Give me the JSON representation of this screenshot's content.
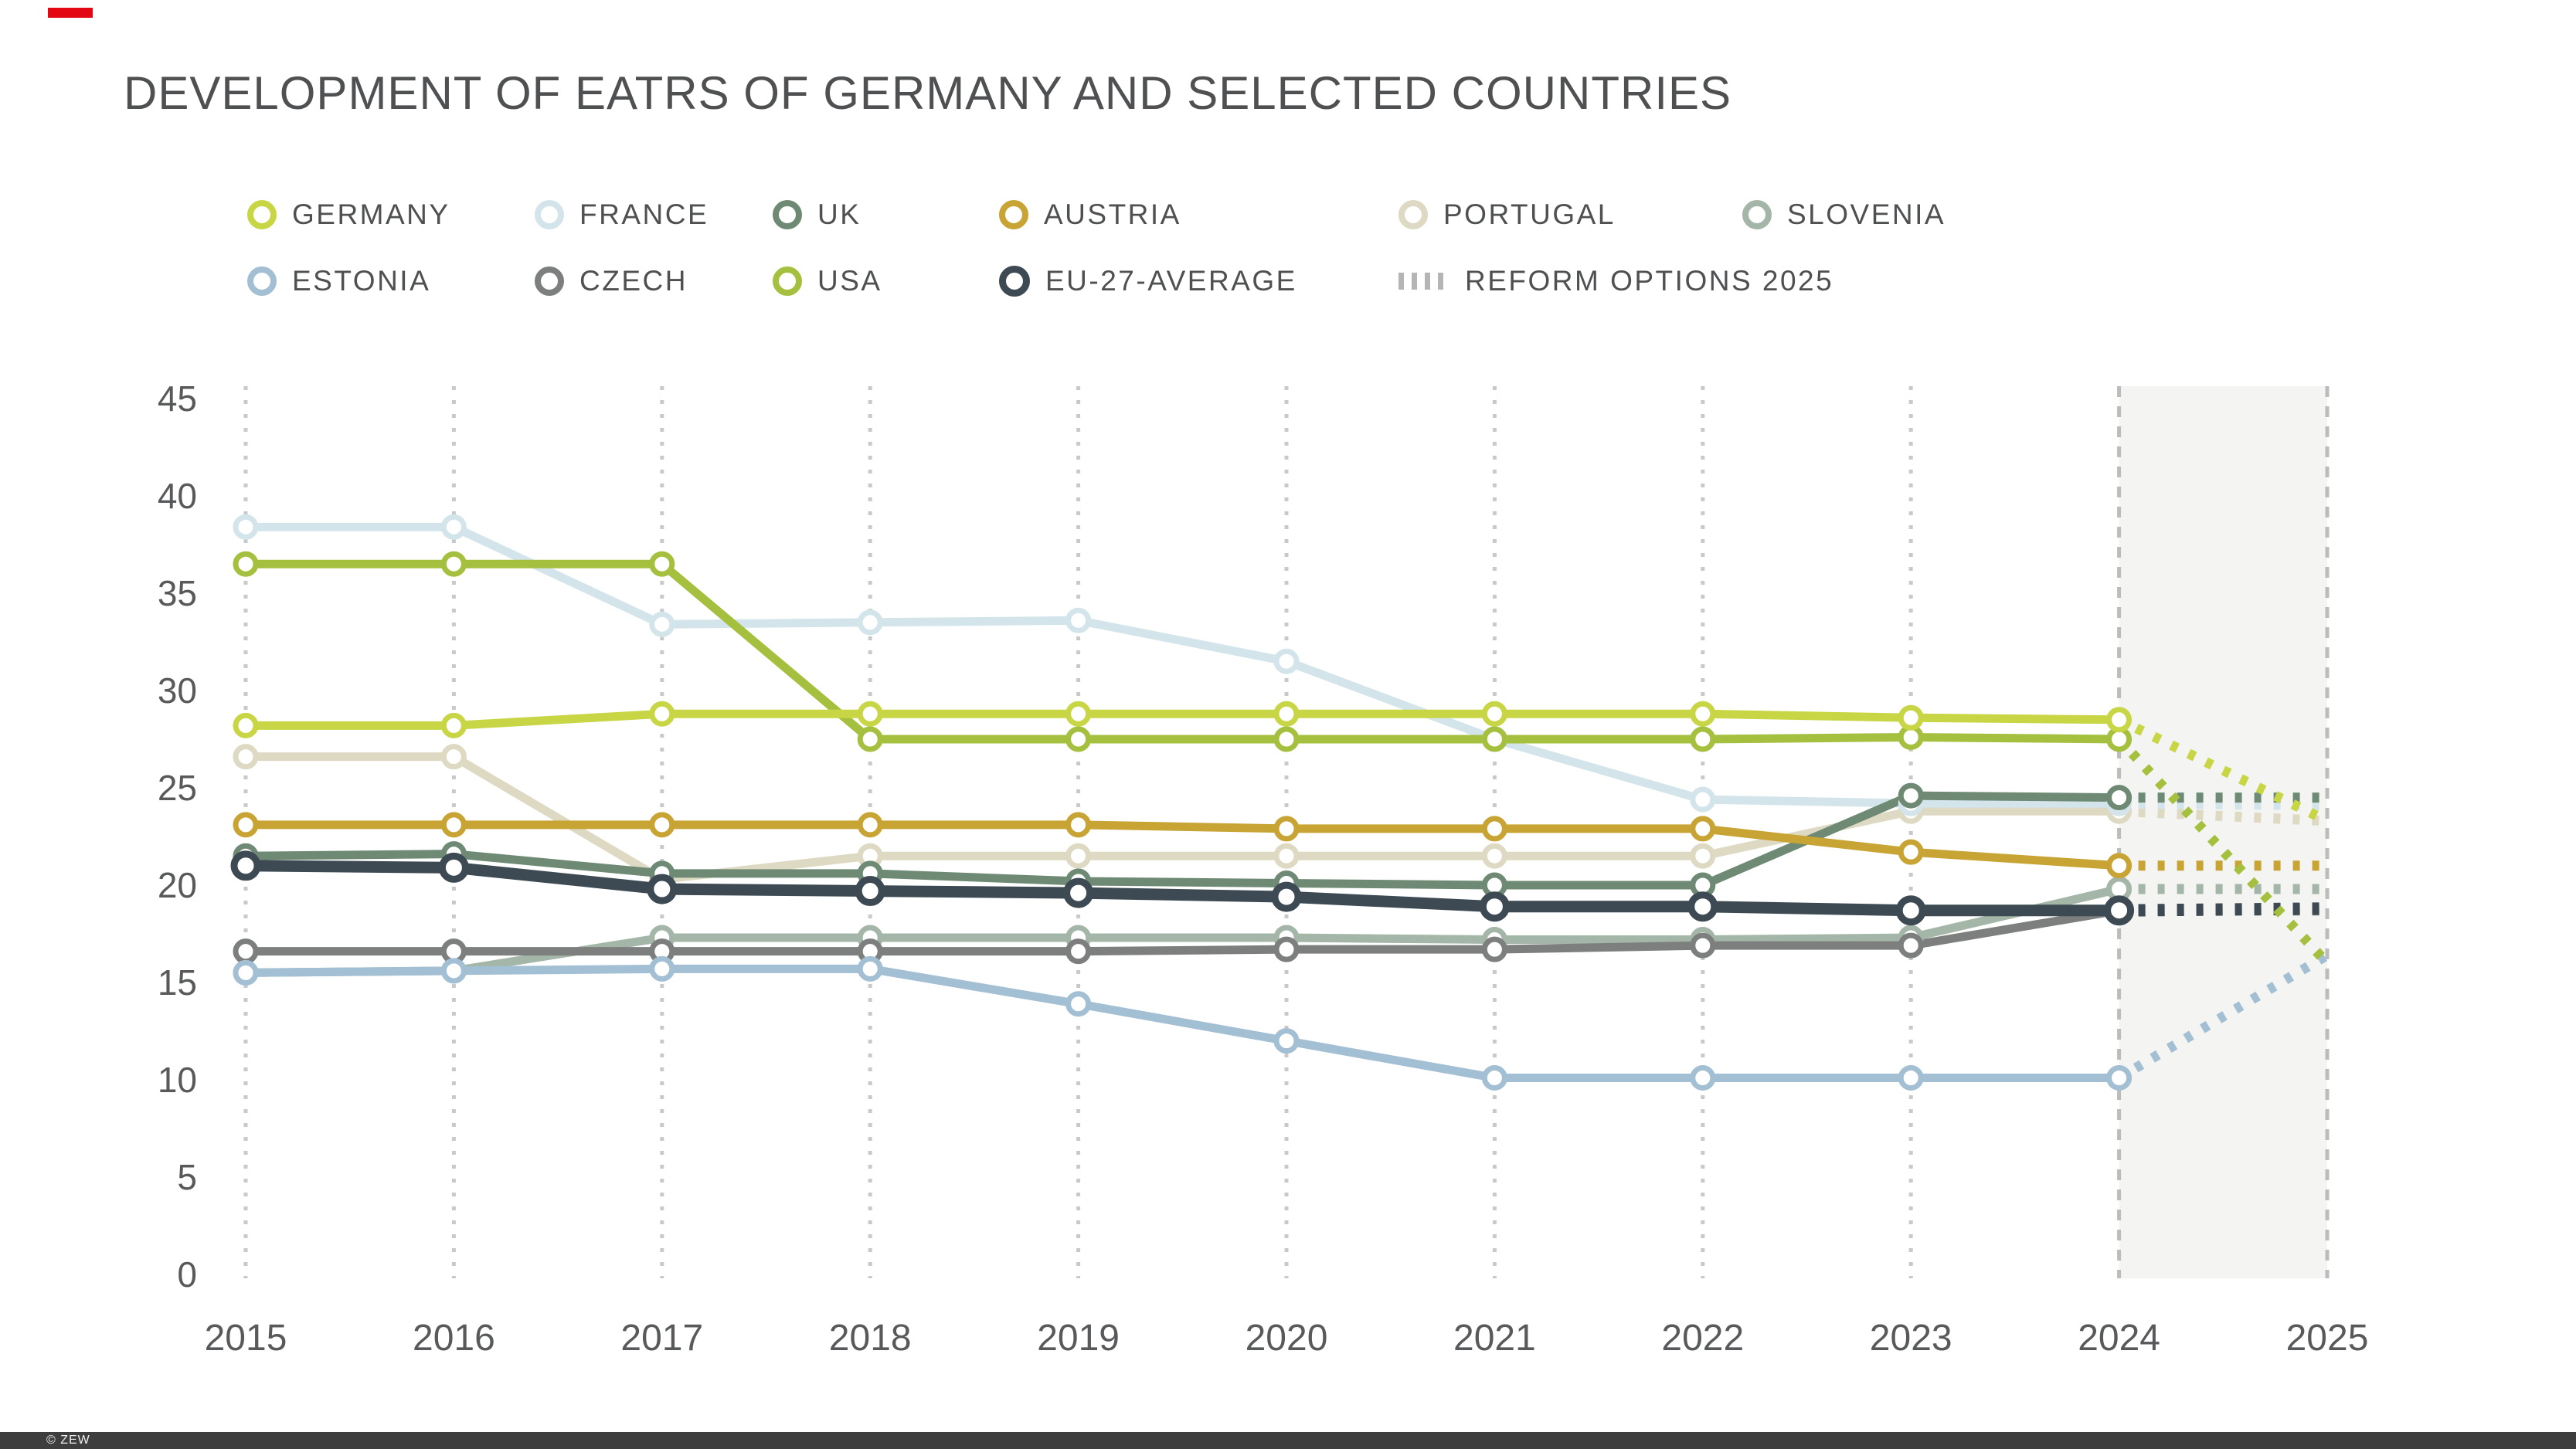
{
  "title": "DEVELOPMENT OF EATRS OF GERMANY AND SELECTED COUNTRIES",
  "accent_color": "#e30613",
  "footer": {
    "label": "© ZEW"
  },
  "colors": {
    "title_text": "#4f5052",
    "axis_text": "#58595b",
    "gridline": "#c9c9c9",
    "forecast_band_fill": "#f4f4f2",
    "forecast_band_border": "#bcbcbc",
    "legend_text": "#4f5052",
    "reform_dashes": "#b5b5b5"
  },
  "chart_data": {
    "type": "line",
    "title": "DEVELOPMENT OF EATRS OF GERMANY AND SELECTED COUNTRIES",
    "x": [
      2015,
      2016,
      2017,
      2018,
      2019,
      2020,
      2021,
      2022,
      2023,
      2024
    ],
    "projection_year": 2025,
    "ylim": [
      0,
      45
    ],
    "ytick_step": 5,
    "yticks": [
      0,
      5,
      10,
      15,
      20,
      25,
      30,
      35,
      40,
      45
    ],
    "xtick_labels": [
      "2015",
      "2016",
      "2017",
      "2018",
      "2019",
      "2020",
      "2021",
      "2022",
      "2023",
      "2024",
      "2025"
    ],
    "grid": "vertical-dotted",
    "legend_position": "top",
    "forecast_band": {
      "from": 2024,
      "to": 2025,
      "projection_style": "dashed"
    },
    "legend_extra": {
      "label": "REFORM OPTIONS 2025",
      "style": "dashes",
      "color": "#b5b5b5"
    },
    "series": [
      {
        "name": "GERMANY",
        "color": "#c8d645",
        "values": [
          28.2,
          28.2,
          28.8,
          28.8,
          28.8,
          28.8,
          28.8,
          28.8,
          28.6,
          28.5
        ],
        "value_2025": 23.3
      },
      {
        "name": "FRANCE",
        "color": "#d3e5eb",
        "values": [
          38.4,
          38.4,
          33.4,
          33.5,
          33.6,
          31.5,
          27.5,
          24.4,
          24.2,
          24.2
        ],
        "value_2025": 24.1
      },
      {
        "name": "UK",
        "color": "#6e8a74",
        "values": [
          21.5,
          21.6,
          20.6,
          20.6,
          20.2,
          20.1,
          20.0,
          20.0,
          24.6,
          24.5
        ],
        "value_2025": 24.5
      },
      {
        "name": "AUSTRIA",
        "color": "#c8a434",
        "values": [
          23.1,
          23.1,
          23.1,
          23.1,
          23.1,
          22.9,
          22.9,
          22.9,
          21.7,
          21.0
        ],
        "value_2025": 21.0
      },
      {
        "name": "PORTUGAL",
        "color": "#ded9c3",
        "values": [
          26.6,
          26.6,
          20.3,
          21.5,
          21.5,
          21.5,
          21.5,
          21.5,
          23.8,
          23.8
        ],
        "value_2025": 23.3
      },
      {
        "name": "SLOVENIA",
        "color": "#a4b6a8",
        "values": [
          15.5,
          15.6,
          17.3,
          17.3,
          17.3,
          17.3,
          17.2,
          17.2,
          17.3,
          19.8
        ],
        "value_2025": 19.8
      },
      {
        "name": "ESTONIA",
        "color": "#a3bfd3",
        "values": [
          15.5,
          15.6,
          15.7,
          15.7,
          13.9,
          12.0,
          10.1,
          10.1,
          10.1,
          10.1
        ],
        "value_2025": 16.4
      },
      {
        "name": "CZECH",
        "color": "#7c7f7e",
        "values": [
          16.6,
          16.6,
          16.6,
          16.6,
          16.6,
          16.7,
          16.7,
          16.9,
          16.9,
          18.7
        ],
        "value_2025": 18.7
      },
      {
        "name": "USA",
        "color": "#a5c03e",
        "values": [
          36.5,
          36.5,
          36.5,
          27.5,
          27.5,
          27.5,
          27.5,
          27.5,
          27.6,
          27.5
        ],
        "value_2025": 16.0
      },
      {
        "name": "EU-27-AVERAGE",
        "color": "#3d4a53",
        "emphasis": true,
        "values": [
          21.0,
          20.9,
          19.8,
          19.7,
          19.6,
          19.4,
          18.9,
          18.9,
          18.7,
          18.7
        ],
        "value_2025": 18.8
      }
    ],
    "draw_order": [
      "PORTUGAL",
      "SLOVENIA",
      "CZECH",
      "ESTONIA",
      "FRANCE",
      "UK",
      "AUSTRIA",
      "EU-27-AVERAGE",
      "USA",
      "GERMANY"
    ]
  }
}
